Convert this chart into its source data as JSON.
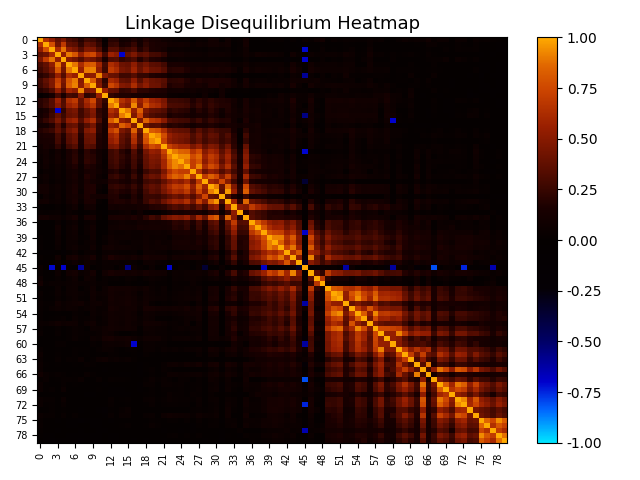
{
  "title": "Linkage Disequilibrium Heatmap",
  "n_snps": 80,
  "tick_step": 3,
  "vmin": -1.0,
  "vmax": 1.0,
  "colorbar_ticks": [
    1.0,
    0.75,
    0.5,
    0.25,
    0.0,
    -0.25,
    -0.5,
    -0.75,
    -1.0
  ],
  "seed": 42,
  "special_snp": 45,
  "figsize": [
    6.4,
    4.8
  ],
  "dpi": 100
}
